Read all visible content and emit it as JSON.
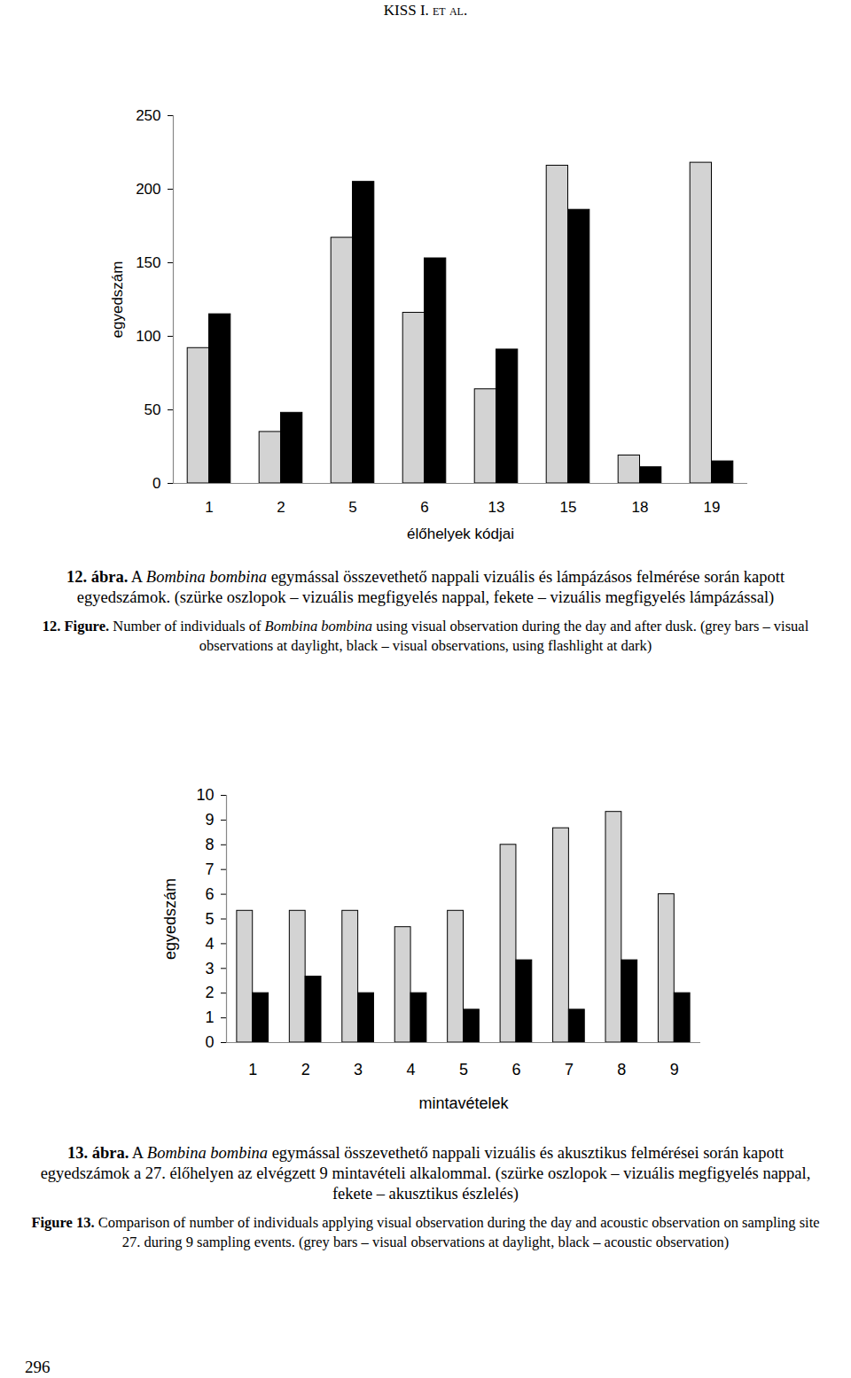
{
  "document": {
    "header": "KISS I. et al.",
    "page_number": "296",
    "captions": [
      [
        [
          {
            "text": "12. ábra.",
            "style": "bold"
          },
          {
            "text": " A "
          },
          {
            "text": "Bombina bombina",
            "style": "italic"
          },
          {
            "text": " egymással összevethető nappali vizuális és lámpázásos felmérése során kapott egyedszámok. (szürke oszlopok – vizuális megfigyelés nappal, fekete – vizuális megfigyelés lámpázással)"
          }
        ],
        [
          {
            "text": "12. Figure.",
            "style": "bold"
          },
          {
            "text": " Number of individuals of "
          },
          {
            "text": "Bombina bombina",
            "style": "italic"
          },
          {
            "text": " using visual observation during the day and after dusk. (grey bars – visual observations at daylight, black – visual observations, using flashlight at dark)"
          }
        ]
      ],
      [
        [
          {
            "text": "13. ábra.",
            "style": "bold"
          },
          {
            "text": " A "
          },
          {
            "text": "Bombina bombina",
            "style": "italic"
          },
          {
            "text": " egymással összevethető nappali vizuális és akusztikus felmérései során kapott egyedszámok a 27. élőhelyen az elvégzett 9 mintavételi alkalommal. (szürke oszlopok – vizuális megfigyelés nappal, fekete – akusztikus észlelés)"
          }
        ],
        [
          {
            "text": "Figure 13.",
            "style": "bold"
          },
          {
            "text": " Comparison of number of individuals applying visual observation during the day and acoustic observation on sampling site 27. during 9 sampling events. (grey bars – visual observations at daylight, black – acoustic observation)"
          }
        ]
      ]
    ]
  },
  "chart_data": [
    {
      "type": "bar",
      "x_label": "élőhelyek kódjai",
      "y_label": "egyedszám",
      "categories": [
        "1",
        "2",
        "5",
        "6",
        "13",
        "15",
        "18",
        "19"
      ],
      "series": [
        {
          "color": "#d3d3d3",
          "values": [
            92,
            35,
            167,
            116,
            64,
            216,
            19,
            218
          ]
        },
        {
          "color": "#000000",
          "values": [
            115,
            48,
            205,
            153,
            91,
            186,
            11,
            15
          ]
        }
      ],
      "ylim": [
        0,
        250
      ],
      "yticks": [
        0,
        50,
        100,
        150,
        200,
        250
      ],
      "grid": false
    },
    {
      "type": "bar",
      "x_label": "mintavételek",
      "y_label": "egyedszám",
      "categories": [
        "1",
        "2",
        "3",
        "4",
        "5",
        "6",
        "7",
        "8",
        "9"
      ],
      "series": [
        {
          "color": "#d3d3d3",
          "values": [
            5.33,
            5.33,
            5.33,
            4.67,
            5.33,
            8,
            8.67,
            9.33,
            6
          ]
        },
        {
          "color": "#000000",
          "values": [
            2,
            2.67,
            2,
            2,
            1.33,
            3.33,
            1.33,
            3.33,
            2
          ]
        }
      ],
      "ylim": [
        0,
        10
      ],
      "yticks": [
        0,
        1,
        2,
        3,
        4,
        5,
        6,
        7,
        8,
        9,
        10
      ],
      "grid": false
    }
  ]
}
